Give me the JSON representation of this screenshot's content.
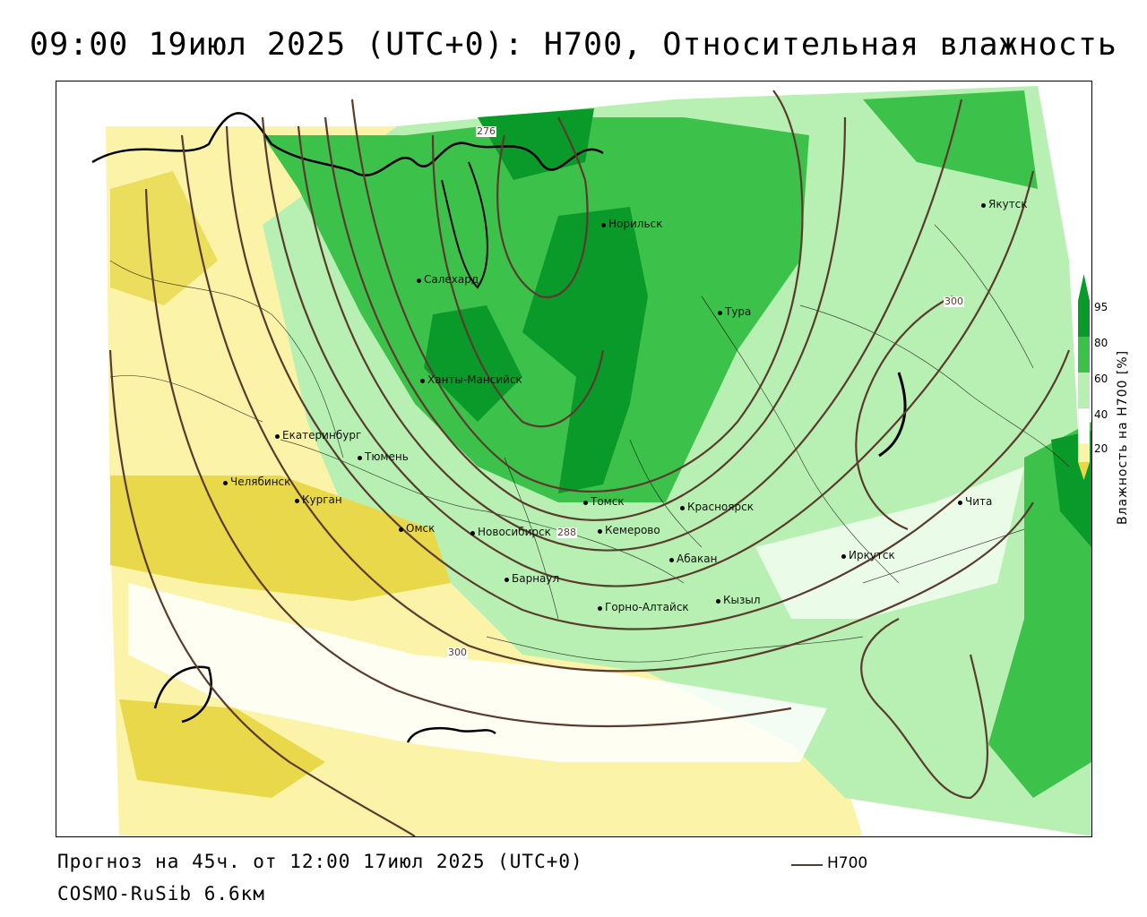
{
  "title": "09:00 19июл 2025 (UTC+0): H700, Относительная влажность",
  "map": {
    "cities": [
      {
        "name": "Якутск",
        "key": "yakutsk"
      },
      {
        "name": "Норильск",
        "key": "norilsk"
      },
      {
        "name": "Салехард",
        "key": "salekhard"
      },
      {
        "name": "Тура",
        "key": "tura"
      },
      {
        "name": "Ханты-Мансийск",
        "key": "khanty"
      },
      {
        "name": "Екатеринбург",
        "key": "ekb"
      },
      {
        "name": "Тюмень",
        "key": "tyumen"
      },
      {
        "name": "Челябинск",
        "key": "chelyabinsk"
      },
      {
        "name": "Курган",
        "key": "kurgan"
      },
      {
        "name": "Омск",
        "key": "omsk"
      },
      {
        "name": "Новосибирск",
        "key": "novosibirsk"
      },
      {
        "name": "Томск",
        "key": "tomsk"
      },
      {
        "name": "Кемерово",
        "key": "kemerovo"
      },
      {
        "name": "Красноярск",
        "key": "krasnoyarsk"
      },
      {
        "name": "Абакан",
        "key": "abakan"
      },
      {
        "name": "Барнаул",
        "key": "barnaul"
      },
      {
        "name": "Горно-Алтайск",
        "key": "gorno"
      },
      {
        "name": "Кызыл",
        "key": "kyzyl"
      },
      {
        "name": "Иркутск",
        "key": "irkutsk"
      },
      {
        "name": "Чита",
        "key": "chita"
      }
    ],
    "contour_labels": [
      "276",
      "288",
      "300",
      "300"
    ],
    "colors": {
      "contour": "#5a3c2e",
      "rh_95": "#0a9a2a",
      "rh_80": "#3cc24a",
      "rh_60": "#b7f0b2",
      "rh_40": "#ffffff",
      "rh_20": "#fbf3a8",
      "rh_0": "#e8d84a"
    }
  },
  "colorbar": {
    "ticks": [
      "95",
      "80",
      "60",
      "40",
      "20"
    ],
    "title": "Влажность на H700 [%]"
  },
  "footer": {
    "forecast": "Прогноз на 45ч. от 12:00 17июл 2025 (UTC+0)",
    "model": "COSMO-RuSib 6.6км",
    "legend_label": "H700"
  }
}
